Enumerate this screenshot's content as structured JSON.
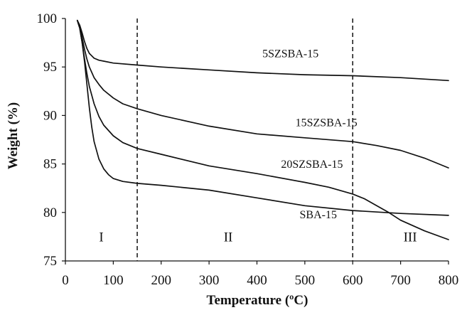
{
  "chart_data": {
    "type": "line",
    "xlabel": "Temperature (ºC)",
    "ylabel": "Weight (%)",
    "xlim": [
      0,
      800
    ],
    "ylim": [
      75,
      100
    ],
    "xticks": [
      0,
      100,
      200,
      300,
      400,
      500,
      600,
      700,
      800
    ],
    "yticks": [
      75,
      80,
      85,
      90,
      95,
      100
    ],
    "x_tick_labels": [
      "0",
      "100",
      "200",
      "300",
      "400",
      "500",
      "600",
      "700",
      "800"
    ],
    "y_tick_labels": [
      "75",
      "80",
      "85",
      "90",
      "95",
      "100"
    ],
    "grid": false,
    "colors": {
      "line": "#111111",
      "axis": "#111111"
    },
    "vlines": [
      {
        "x": 150,
        "style": "dashed"
      },
      {
        "x": 600,
        "style": "dashed"
      }
    ],
    "regions": [
      {
        "label": "I",
        "x": 75,
        "y": 77
      },
      {
        "label": "II",
        "x": 340,
        "y": 77
      },
      {
        "label": "III",
        "x": 720,
        "y": 77
      }
    ],
    "series": [
      {
        "name": "5SZSBA-15",
        "label_x": 470,
        "label_y": 96,
        "x": [
          25,
          30,
          35,
          40,
          45,
          50,
          60,
          70,
          80,
          100,
          150,
          200,
          300,
          400,
          500,
          600,
          700,
          800
        ],
        "y": [
          99.8,
          99.3,
          98.5,
          97.6,
          96.9,
          96.4,
          95.9,
          95.7,
          95.6,
          95.4,
          95.2,
          95.0,
          94.7,
          94.4,
          94.2,
          94.1,
          93.9,
          93.6
        ]
      },
      {
        "name": "15SZSBA-15",
        "label_x": 545,
        "label_y": 88.9,
        "x": [
          25,
          30,
          35,
          40,
          45,
          50,
          60,
          70,
          80,
          100,
          120,
          150,
          200,
          300,
          400,
          500,
          600,
          650,
          700,
          750,
          800
        ],
        "y": [
          99.8,
          99.2,
          98.0,
          96.8,
          95.8,
          95.0,
          93.9,
          93.2,
          92.6,
          91.8,
          91.2,
          90.7,
          90.0,
          88.9,
          88.1,
          87.7,
          87.3,
          86.9,
          86.4,
          85.6,
          84.6
        ]
      },
      {
        "name": "20SZSBA-15",
        "label_x": 515,
        "label_y": 84.6,
        "x": [
          25,
          30,
          35,
          40,
          45,
          50,
          60,
          70,
          80,
          100,
          120,
          150,
          200,
          300,
          400,
          500,
          550,
          600,
          625,
          650,
          675,
          700,
          750,
          800
        ],
        "y": [
          99.8,
          99.0,
          97.5,
          95.8,
          94.3,
          93.0,
          91.2,
          89.9,
          89.0,
          87.9,
          87.2,
          86.6,
          86.0,
          84.8,
          84.0,
          83.1,
          82.6,
          81.9,
          81.4,
          80.7,
          80.0,
          79.2,
          78.1,
          77.2
        ]
      },
      {
        "name": "SBA-15",
        "label_x": 528,
        "label_y": 79.4,
        "x": [
          25,
          30,
          35,
          40,
          45,
          50,
          55,
          60,
          70,
          80,
          90,
          100,
          120,
          150,
          200,
          300,
          400,
          500,
          600,
          700,
          800
        ],
        "y": [
          99.8,
          99.0,
          97.5,
          95.5,
          93.2,
          90.8,
          88.8,
          87.3,
          85.5,
          84.5,
          83.9,
          83.5,
          83.2,
          83.0,
          82.8,
          82.3,
          81.5,
          80.7,
          80.2,
          79.9,
          79.7
        ]
      }
    ]
  }
}
